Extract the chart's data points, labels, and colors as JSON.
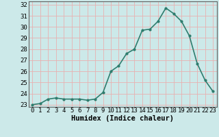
{
  "x": [
    0,
    1,
    2,
    3,
    4,
    5,
    6,
    7,
    8,
    9,
    10,
    11,
    12,
    13,
    14,
    15,
    16,
    17,
    18,
    19,
    20,
    21,
    22,
    23
  ],
  "y": [
    23.0,
    23.1,
    23.5,
    23.6,
    23.5,
    23.5,
    23.5,
    23.4,
    23.5,
    24.1,
    26.0,
    26.5,
    27.6,
    28.0,
    29.7,
    29.8,
    30.5,
    31.7,
    31.2,
    30.5,
    29.2,
    26.7,
    25.2,
    24.2
  ],
  "line_color": "#2e7d6e",
  "marker": ".",
  "marker_size": 4,
  "bg_color": "#cce9e9",
  "grid_color": "#b0d0d0",
  "xlabel": "Humidex (Indice chaleur)",
  "ylim": [
    22.8,
    32.3
  ],
  "xlim": [
    -0.5,
    23.5
  ],
  "yticks": [
    23,
    24,
    25,
    26,
    27,
    28,
    29,
    30,
    31,
    32
  ],
  "xticks": [
    0,
    1,
    2,
    3,
    4,
    5,
    6,
    7,
    8,
    9,
    10,
    11,
    12,
    13,
    14,
    15,
    16,
    17,
    18,
    19,
    20,
    21,
    22,
    23
  ],
  "label_fontsize": 7.5,
  "tick_fontsize": 6.5,
  "line_width": 1.2
}
